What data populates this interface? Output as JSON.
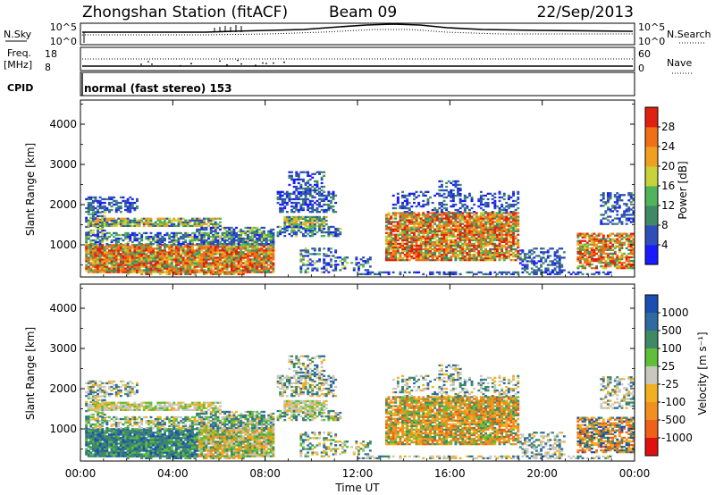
{
  "header": {
    "station": "Zhongshan Station (fitACF)",
    "beam": "Beam 09",
    "date": "22/Sep/2013"
  },
  "panels": {
    "nsky": {
      "left_label": "N.Sky",
      "right_label": "N.Search",
      "left_ticks": [
        "10^5",
        "10^0"
      ],
      "right_ticks": [
        "10^5",
        "10^0"
      ]
    },
    "freq": {
      "left_label_1": "Freq.",
      "left_label_2": "[MHz]",
      "right_label": "Nave",
      "left_ticks": [
        "18",
        "8"
      ],
      "right_ticks": [
        "60",
        "0"
      ]
    },
    "cpid": {
      "label": "CPID",
      "text": "normal (fast stereo) 153"
    }
  },
  "chart_data": [
    {
      "type": "heatmap",
      "name": "power",
      "ylabel": "Slant Range [km]",
      "y_ticks": [
        "1000",
        "2000",
        "3000",
        "4000"
      ],
      "ylim": [
        200,
        4600
      ],
      "x_ticks": [
        "00:00",
        "04:00",
        "08:00",
        "12:00",
        "16:00",
        "20:00",
        "00:00"
      ],
      "xlim_hours": [
        0,
        24
      ],
      "colorbar": {
        "label": "Power [dB]",
        "ticks": [
          "4",
          "8",
          "12",
          "16",
          "20",
          "24",
          "28"
        ],
        "colors": [
          "#1a1aff",
          "#2f4fb8",
          "#3f8a64",
          "#4fb45a",
          "#c8d23a",
          "#f0a020",
          "#f07018",
          "#e02010"
        ]
      }
    },
    {
      "type": "heatmap",
      "name": "velocity",
      "ylabel": "Slant Range [km]",
      "y_ticks": [
        "1000",
        "2000",
        "3000",
        "4000"
      ],
      "ylim": [
        200,
        4600
      ],
      "x_ticks": [
        "00:00",
        "04:00",
        "08:00",
        "12:00",
        "16:00",
        "20:00",
        "00:00"
      ],
      "xlim_hours": [
        0,
        24
      ],
      "xlabel": "Time UT",
      "colorbar": {
        "label": "Velocity [m s⁻¹]",
        "ticks": [
          "1000",
          "500",
          "100",
          "25",
          "-25",
          "-100",
          "-500",
          "-1000"
        ],
        "colors": [
          "#1a4fb0",
          "#2f6aa0",
          "#3f8a64",
          "#5fbf3a",
          "#c8c8c0",
          "#f0b020",
          "#f09020",
          "#f06018",
          "#e01010"
        ]
      }
    }
  ]
}
